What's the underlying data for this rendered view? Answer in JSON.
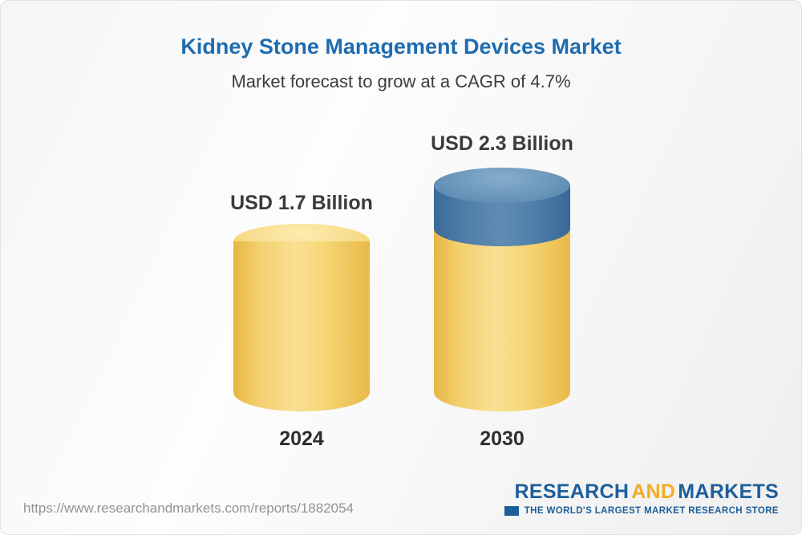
{
  "header": {
    "title": "Kidney Stone Management Devices Market",
    "subtitle": "Market forecast to grow at a CAGR of 4.7%"
  },
  "chart_data": {
    "type": "bar",
    "title": "Kidney Stone Management Devices Market",
    "subtitle": "Market forecast to grow at a CAGR of 4.7%",
    "cagr_percent": 4.7,
    "unit": "USD Billion",
    "categories": [
      "2024",
      "2030"
    ],
    "values": [
      1.7,
      2.3
    ],
    "labels": [
      "USD 1.7 Billion",
      "USD 2.3 Billion"
    ],
    "ylim": [
      0,
      2.5
    ],
    "grid": false,
    "legend": "none",
    "bar_style": "3d-cylinder",
    "bar_colors": [
      "#f6d678",
      "#f6d678 with #5f8cb4 growth segment"
    ]
  },
  "colors": {
    "title_blue": "#1e6cb0",
    "cylinder_yellow": "#f6d678",
    "cylinder_blue": "#5f8cb4",
    "label_dark": "#3b3b3b",
    "url_gray": "#949494",
    "logo_blue": "#1d5e9b",
    "logo_gold": "#f3ac25"
  },
  "footer": {
    "url": "https://www.researchandmarkets.com/reports/1882054",
    "logo": {
      "part1": "RESEARCH",
      "part2": "AND",
      "part3": "MARKETS",
      "tagline": "THE WORLD'S LARGEST MARKET RESEARCH STORE"
    }
  }
}
